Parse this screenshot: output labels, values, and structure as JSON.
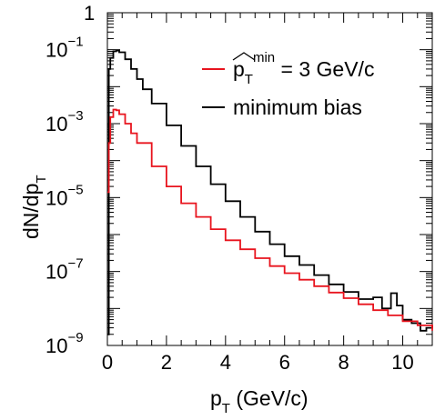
{
  "chart_data": {
    "type": "line",
    "xlabel": "p",
    "xlabel_sub": "T",
    "xlabel_unit": "(GeV/c)",
    "ylabel": "dN/dp",
    "ylabel_sub": "T",
    "xlim": [
      0,
      11
    ],
    "ylim": [
      1e-09,
      1
    ],
    "yscale": "log",
    "grid": false,
    "legend_position": "top-right",
    "x_ticks": [
      {
        "value": 0,
        "label": "0"
      },
      {
        "value": 2,
        "label": "2"
      },
      {
        "value": 4,
        "label": "4"
      },
      {
        "value": 6,
        "label": "6"
      },
      {
        "value": 8,
        "label": "8"
      },
      {
        "value": 10,
        "label": "10"
      }
    ],
    "y_ticks": [
      {
        "value": 1,
        "base": "1",
        "exp": ""
      },
      {
        "value": 0.1,
        "base": "10",
        "exp": "−1"
      },
      {
        "value": 0.001,
        "base": "10",
        "exp": "−3"
      },
      {
        "value": 1e-05,
        "base": "10",
        "exp": "−5"
      },
      {
        "value": 1e-07,
        "base": "10",
        "exp": "−7"
      },
      {
        "value": 1e-09,
        "base": "10",
        "exp": "−9"
      }
    ],
    "series": [
      {
        "name": "minimum bias",
        "color": "#000000",
        "points": [
          [
            0.0,
            2e-09
          ],
          [
            0.05,
            0.03
          ],
          [
            0.1,
            0.06
          ],
          [
            0.2,
            0.09
          ],
          [
            0.3,
            0.095
          ],
          [
            0.4,
            0.085
          ],
          [
            0.6,
            0.055
          ],
          [
            0.8,
            0.03
          ],
          [
            1.0,
            0.016
          ],
          [
            1.2,
            0.0085
          ],
          [
            1.5,
            0.0035
          ],
          [
            2.0,
            0.0009
          ],
          [
            2.5,
            0.00025
          ],
          [
            3.0,
            7e-05
          ],
          [
            3.5,
            2.3e-05
          ],
          [
            4.0,
            8e-06
          ],
          [
            4.5,
            3e-06
          ],
          [
            5.0,
            1.2e-06
          ],
          [
            5.5,
            5.5e-07
          ],
          [
            6.0,
            2.6e-07
          ],
          [
            6.5,
            1.5e-07
          ],
          [
            7.0,
            8e-08
          ],
          [
            7.5,
            4.5e-08
          ],
          [
            8.0,
            2.8e-08
          ],
          [
            8.5,
            1.8e-08
          ],
          [
            9.0,
            2e-08
          ],
          [
            9.3,
            1e-08
          ],
          [
            9.6,
            2.6e-08
          ],
          [
            9.8,
            1.2e-08
          ],
          [
            10.0,
            5e-09
          ],
          [
            10.3,
            4e-09
          ],
          [
            10.6,
            2.5e-09
          ],
          [
            10.8,
            3e-09
          ],
          [
            11.0,
            3.5e-09
          ]
        ]
      },
      {
        "name": "p_T^min = 3 GeV/c",
        "color": "#e8141e",
        "points": [
          [
            0.0,
            1.4e-05
          ],
          [
            0.05,
            0.0003
          ],
          [
            0.1,
            0.0015
          ],
          [
            0.2,
            0.0024
          ],
          [
            0.3,
            0.0023
          ],
          [
            0.4,
            0.0018
          ],
          [
            0.6,
            0.001
          ],
          [
            0.8,
            0.00055
          ],
          [
            1.0,
            0.0003
          ],
          [
            1.5,
            7e-05
          ],
          [
            2.0,
            2e-05
          ],
          [
            2.5,
            7e-06
          ],
          [
            3.0,
            3e-06
          ],
          [
            3.5,
            1.4e-06
          ],
          [
            4.0,
            7e-07
          ],
          [
            4.5,
            4e-07
          ],
          [
            5.0,
            2.3e-07
          ],
          [
            5.5,
            1.4e-07
          ],
          [
            6.0,
            9e-08
          ],
          [
            6.5,
            6e-08
          ],
          [
            7.0,
            4e-08
          ],
          [
            7.5,
            2.7e-08
          ],
          [
            8.0,
            1.9e-08
          ],
          [
            8.5,
            1.3e-08
          ],
          [
            9.0,
            9e-09
          ],
          [
            9.5,
            6.5e-09
          ],
          [
            10.0,
            4.5e-09
          ],
          [
            10.5,
            3.5e-09
          ],
          [
            11.0,
            2.5e-09
          ]
        ]
      }
    ],
    "legend": [
      {
        "series": 1,
        "label_main": "p",
        "label_sub": "T",
        "label_sup": "min",
        "label_rest": "= 3 GeV/c",
        "hat": true
      },
      {
        "series": 0,
        "label_main": "minimum bias",
        "label_sub": "",
        "label_sup": "",
        "label_rest": "",
        "hat": false
      }
    ]
  }
}
